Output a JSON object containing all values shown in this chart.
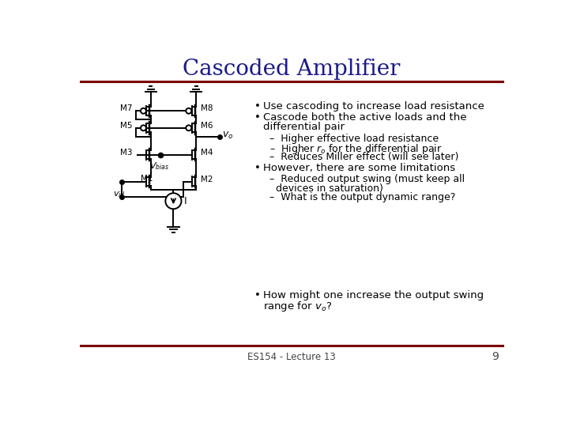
{
  "title": "Cascoded Amplifier",
  "title_color": "#1a1a8c",
  "title_fontsize": 20,
  "background_color": "#FFFFFF",
  "divider_color": "#7B0000",
  "footer_text": "ES154 - Lecture 13",
  "footer_page": "9",
  "bullet1": "Use cascoding to increase load resistance",
  "bullet2a": "Cascode both the active loads and the",
  "bullet2b": "differential pair",
  "sub1": "Higher effective load resistance",
  "sub3": "Reduces Miller effect (will see later)",
  "bullet3": "However, there are some limitations",
  "sub4a": "Reduced output swing (must keep all",
  "sub4b": "devices in saturation)",
  "sub5": "What is the output dynamic range?",
  "bullet4a": "How might one increase the output swing",
  "bullet4b": "range for vₒ?",
  "text_color": "#000000",
  "text_fontsize": 9.5,
  "sub_fontsize": 9.0,
  "circ_color": "#000000"
}
